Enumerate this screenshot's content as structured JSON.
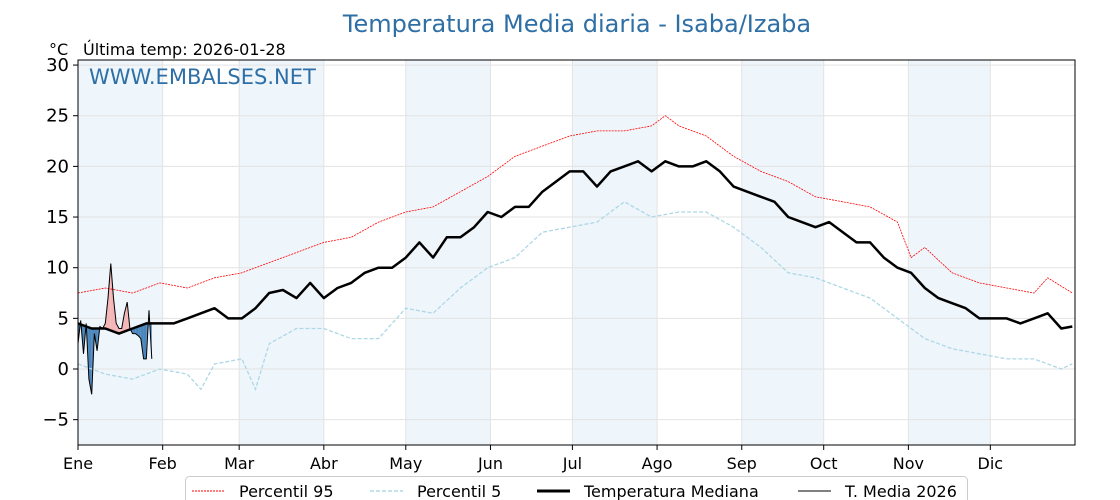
{
  "chart_data": {
    "type": "line",
    "title": "Temperatura Media diaria - Isaba/Izaba",
    "unit_label": "°C",
    "subtitle": "Última temp: 2026-01-28",
    "watermark": "WWW.EMBALSES.NET",
    "xlabel": "",
    "ylabel": "°C",
    "xlim": [
      0,
      365
    ],
    "ylim": [
      -7.5,
      30.5
    ],
    "yticks": [
      -5,
      0,
      5,
      10,
      15,
      20,
      25,
      30
    ],
    "months": [
      {
        "label": "Ene",
        "day": 0
      },
      {
        "label": "Feb",
        "day": 31
      },
      {
        "label": "Mar",
        "day": 59
      },
      {
        "label": "Abr",
        "day": 90
      },
      {
        "label": "May",
        "day": 120
      },
      {
        "label": "Jun",
        "day": 151
      },
      {
        "label": "Jul",
        "day": 181
      },
      {
        "label": "Ago",
        "day": 212
      },
      {
        "label": "Sep",
        "day": 243
      },
      {
        "label": "Oct",
        "day": 273
      },
      {
        "label": "Nov",
        "day": 304
      },
      {
        "label": "Dic",
        "day": 334
      }
    ],
    "legend": [
      "Percentil 95",
      "Percentil 5",
      "Temperatura Mediana",
      "T. Media 2026"
    ],
    "legend_position": "bottom-center",
    "colors": {
      "p95": "#ff0000",
      "p5": "#add8e6",
      "median": "#000000",
      "current": "#000000",
      "above": "#f4b6b6",
      "below": "#4a86bb",
      "band": "#eef5fb"
    },
    "series": {
      "p95": {
        "x": [
          0,
          10,
          20,
          30,
          40,
          50,
          60,
          70,
          80,
          90,
          100,
          110,
          120,
          130,
          140,
          150,
          160,
          170,
          180,
          190,
          200,
          210,
          215,
          220,
          230,
          240,
          250,
          260,
          270,
          280,
          290,
          300,
          305,
          310,
          320,
          330,
          340,
          350,
          355,
          364
        ],
        "y": [
          7.5,
          8,
          7.5,
          8.5,
          8,
          9,
          9.5,
          10.5,
          11.5,
          12.5,
          13,
          14.5,
          15.5,
          16,
          17.5,
          19,
          21,
          22,
          23,
          23.5,
          23.5,
          24,
          25,
          24,
          23,
          21,
          19.5,
          18.5,
          17,
          16.5,
          16,
          14.5,
          11,
          12,
          9.5,
          8.5,
          8,
          7.5,
          9,
          7.5
        ]
      },
      "p5": {
        "x": [
          0,
          10,
          20,
          30,
          40,
          45,
          50,
          60,
          65,
          70,
          80,
          90,
          100,
          110,
          120,
          130,
          140,
          150,
          160,
          170,
          180,
          190,
          200,
          210,
          220,
          230,
          240,
          250,
          260,
          270,
          280,
          290,
          300,
          310,
          320,
          330,
          340,
          350,
          360,
          364
        ],
        "y": [
          0.5,
          -0.5,
          -1,
          0,
          -0.5,
          -2,
          0.5,
          1,
          -2,
          2.5,
          4,
          4,
          3,
          3,
          6,
          5.5,
          8,
          10,
          11,
          13.5,
          14,
          14.5,
          16.5,
          15,
          15.5,
          15.5,
          14,
          12,
          9.5,
          9,
          8,
          7,
          5,
          3,
          2,
          1.5,
          1,
          1,
          0,
          0.5
        ]
      },
      "median": {
        "x": [
          0,
          5,
          10,
          15,
          20,
          25,
          30,
          35,
          40,
          45,
          50,
          55,
          60,
          65,
          70,
          75,
          80,
          85,
          90,
          95,
          100,
          105,
          110,
          115,
          120,
          125,
          130,
          135,
          140,
          145,
          150,
          155,
          160,
          165,
          170,
          175,
          180,
          185,
          190,
          195,
          200,
          205,
          210,
          215,
          220,
          225,
          230,
          235,
          240,
          245,
          250,
          255,
          260,
          265,
          270,
          275,
          280,
          285,
          290,
          295,
          300,
          305,
          310,
          315,
          320,
          325,
          330,
          335,
          340,
          345,
          350,
          355,
          360,
          364
        ],
        "y": [
          4.5,
          4,
          4,
          3.5,
          4,
          4.5,
          4.5,
          4.5,
          5,
          5.5,
          6,
          5,
          5,
          6,
          7.5,
          7.8,
          7,
          8.5,
          7,
          8,
          8.5,
          9.5,
          10,
          10,
          11,
          12.5,
          11,
          13,
          13,
          14,
          15.5,
          15,
          16,
          16,
          17.5,
          18.5,
          19.5,
          19.5,
          18,
          19.5,
          20,
          20.5,
          19.5,
          20.5,
          20,
          20,
          20.5,
          19.5,
          18,
          17.5,
          17,
          16.5,
          15,
          14.5,
          14,
          14.5,
          13.5,
          12.5,
          12.5,
          11,
          10,
          9.5,
          8,
          7,
          6.5,
          6,
          5,
          5,
          5,
          4.5,
          5,
          5.5,
          4,
          4.2
        ]
      },
      "current": {
        "x": [
          0,
          1,
          2,
          3,
          4,
          5,
          6,
          7,
          8,
          9,
          10,
          11,
          12,
          13,
          14,
          15,
          16,
          17,
          18,
          19,
          20,
          21,
          22,
          23,
          24,
          25,
          26,
          27
        ],
        "y": [
          2.5,
          4.8,
          1.5,
          4.5,
          -1,
          -2.5,
          3.5,
          1.8,
          4.2,
          4,
          4.5,
          7,
          10.4,
          7,
          4.5,
          4,
          4,
          5.5,
          6.6,
          4,
          3.5,
          3.5,
          3.3,
          3,
          1,
          1,
          5.8,
          1
        ]
      }
    }
  }
}
